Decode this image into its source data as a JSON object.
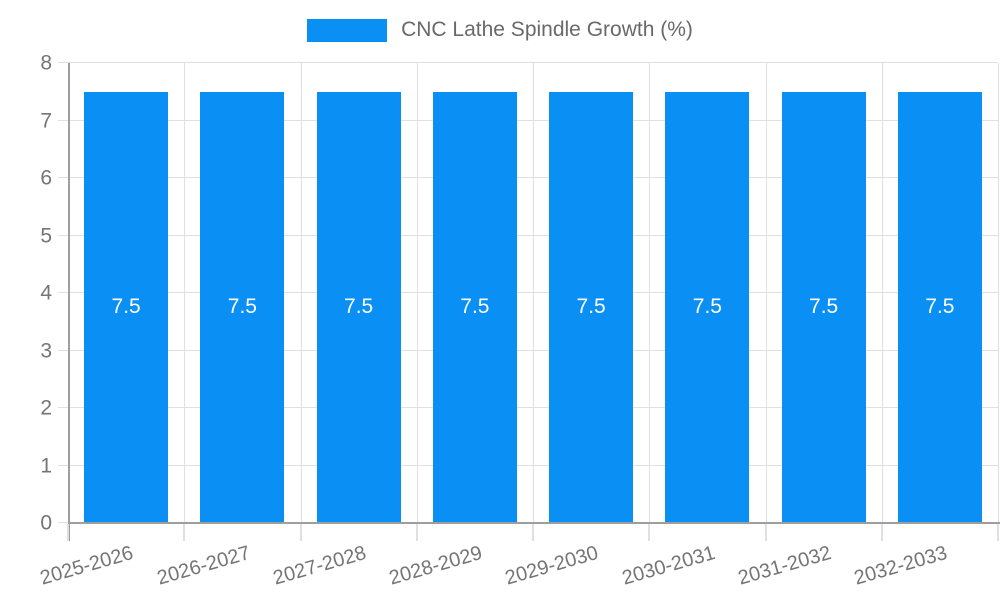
{
  "chart_data": {
    "type": "bar",
    "title": "CNC Lathe Spindle Growth (%)",
    "categories": [
      "2025-2026",
      "2026-2027",
      "2027-2028",
      "2028-2029",
      "2029-2030",
      "2030-2031",
      "2031-2032",
      "2032-2033"
    ],
    "values": [
      7.5,
      7.5,
      7.5,
      7.5,
      7.5,
      7.5,
      7.5,
      7.5
    ],
    "bar_labels": [
      "7.5",
      "7.5",
      "7.5",
      "7.5",
      "7.5",
      "7.5",
      "7.5",
      "7.5"
    ],
    "xlabel": "",
    "ylabel": "",
    "ylim": [
      0,
      8
    ],
    "yticks": [
      0,
      1,
      2,
      3,
      4,
      5,
      6,
      7,
      8
    ],
    "grid": true,
    "legend_position": "top",
    "colors": {
      "bar": "#0a8ff5",
      "bar_label": "#ffffff",
      "axis": "#9e9e9e",
      "gridline": "#e0e0e0",
      "tick_label": "#757575",
      "legend_text": "#696969",
      "background": "#ffffff"
    }
  }
}
